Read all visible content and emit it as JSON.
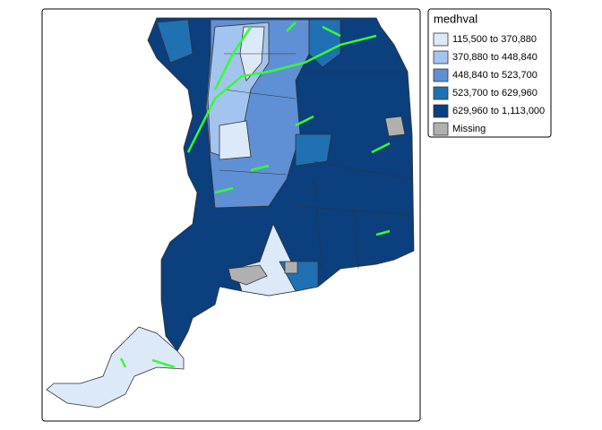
{
  "legend": {
    "title": "medhval",
    "items": [
      {
        "label": "115,500 to 370,880",
        "color": "#dce9f8"
      },
      {
        "label": "370,880 to 448,840",
        "color": "#a3c4ee"
      },
      {
        "label": "448,840 to 523,700",
        "color": "#5f90d5"
      },
      {
        "label": "523,700 to 629,960",
        "color": "#2070b4"
      },
      {
        "label": "629,960 to 1,113,000",
        "color": "#0b3f7d"
      },
      {
        "label": "Missing",
        "color": "#b0b0b0"
      }
    ]
  }
}
